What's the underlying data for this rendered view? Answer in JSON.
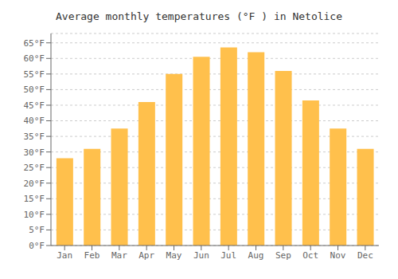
{
  "chart_data": {
    "type": "bar",
    "title": "Average monthly temperatures (°F ) in Netolice",
    "categories": [
      "Jan",
      "Feb",
      "Mar",
      "Apr",
      "May",
      "Jun",
      "Jul",
      "Aug",
      "Sep",
      "Oct",
      "Nov",
      "Dec"
    ],
    "values": [
      28,
      31,
      37.5,
      46,
      55,
      60.5,
      63.5,
      62,
      56,
      46.5,
      37.5,
      31
    ],
    "color": "#FFC04C",
    "ylim": [
      0,
      68
    ],
    "yticks": [
      {
        "value": 0,
        "label": "0°F"
      },
      {
        "value": 5,
        "label": "5°F"
      },
      {
        "value": 10,
        "label": "10°F"
      },
      {
        "value": 15,
        "label": "15°F"
      },
      {
        "value": 20,
        "label": "20°F"
      },
      {
        "value": 25,
        "label": "25°F"
      },
      {
        "value": 30,
        "label": "30°F"
      },
      {
        "value": 35,
        "label": "35°F"
      },
      {
        "value": 40,
        "label": "40°F"
      },
      {
        "value": 45,
        "label": "45°F"
      },
      {
        "value": 50,
        "label": "50°F"
      },
      {
        "value": 55,
        "label": "55°F"
      },
      {
        "value": 60,
        "label": "60°F"
      },
      {
        "value": 65,
        "label": "65°F"
      }
    ],
    "grid": true
  }
}
